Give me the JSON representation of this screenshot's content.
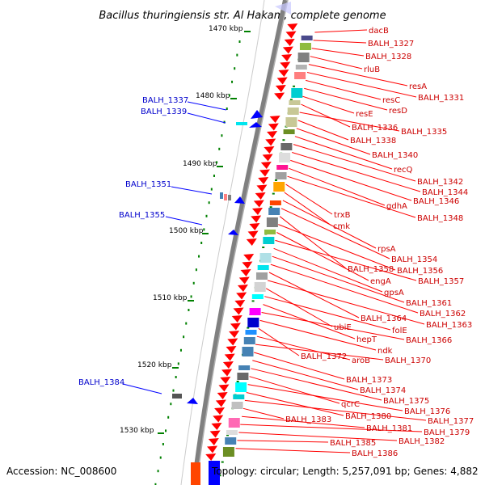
{
  "title": "Bacillus thuringiensis str. Al Hakam, complete genome",
  "footer": {
    "accession": "Accession: NC_008600",
    "topology": "Topology: circular; Length: 5,257,091 bp; Genes: 4,882"
  },
  "kbp_labels": [
    "1470 kbp",
    "1480 kbp",
    "1490 kbp",
    "1500 kbp",
    "1510 kbp",
    "1520 kbp",
    "1530 kbp"
  ],
  "red_labels": [
    "dacB",
    "BALH_1327",
    "BALH_1328",
    "rluB",
    "resA",
    "BALH_1331",
    "resC",
    "resD",
    "resE",
    "BALH_1336",
    "BALH_1335",
    "BALH_1338",
    "BALH_1340",
    "recQ",
    "BALH_1342",
    "BALH_1344",
    "BALH_1346",
    "gdhA",
    "BALH_1348",
    "trxB",
    "cmk",
    "rpsA",
    "BALH_1354",
    "BALH_1358",
    "BALH_1356",
    "engA",
    "BALH_1357",
    "gpsA",
    "BALH_1361",
    "BALH_1362",
    "BALH_1364",
    "BALH_1363",
    "ubiE",
    "folE",
    "hepT",
    "BALH_1366",
    "ndk",
    "BALH_1372",
    "aroB",
    "BALH_1370",
    "BALH_1373",
    "BALH_1374",
    "BALH_1375",
    "qcrC",
    "BALH_1376",
    "BALH_1380",
    "BALH_1377",
    "BALH_1383",
    "BALH_1381",
    "BALH_1379",
    "BALH_1382",
    "BALH_1385",
    "BALH_1386"
  ],
  "blue_labels": [
    "BALH_1337",
    "BALH_1339",
    "BALH_1351",
    "BALH_1355",
    "BALH_1384"
  ],
  "colors": {
    "red_gene": "#ff0000",
    "blue_gene": "#0000ff",
    "red_label": "#cc0000",
    "blue_label": "#0000cc",
    "backbone": "#808080",
    "tick": "#008000"
  }
}
